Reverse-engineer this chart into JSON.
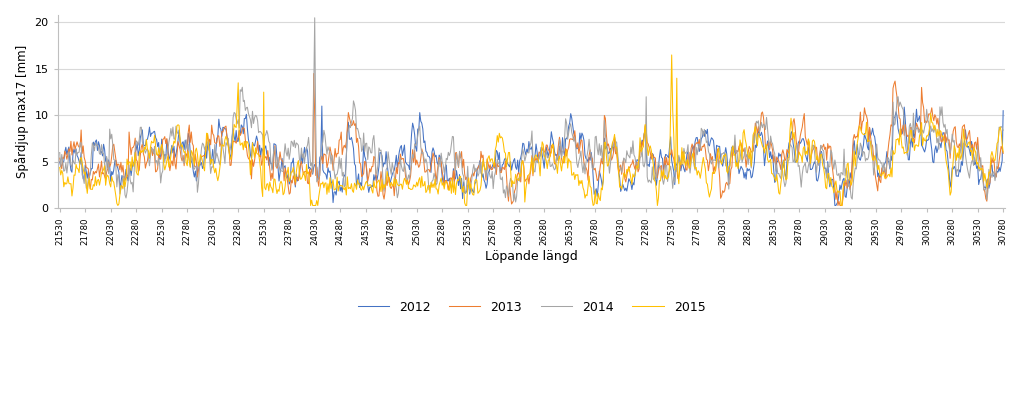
{
  "xlabel": "Löpande längd",
  "ylabel": "Spårdjup max17 [mm]",
  "ylim": [
    0,
    20.8
  ],
  "yticks": [
    0,
    5,
    10,
    15,
    20
  ],
  "xstart": 21530,
  "xend": 30780,
  "xtick_step": 250,
  "colors": {
    "2012": "#4472C4",
    "2013": "#ED7D31",
    "2014": "#A5A5A5",
    "2015": "#FFC000"
  },
  "background_color": "#FFFFFF",
  "grid_color": "#D9D9D9",
  "linewidth": 0.75
}
